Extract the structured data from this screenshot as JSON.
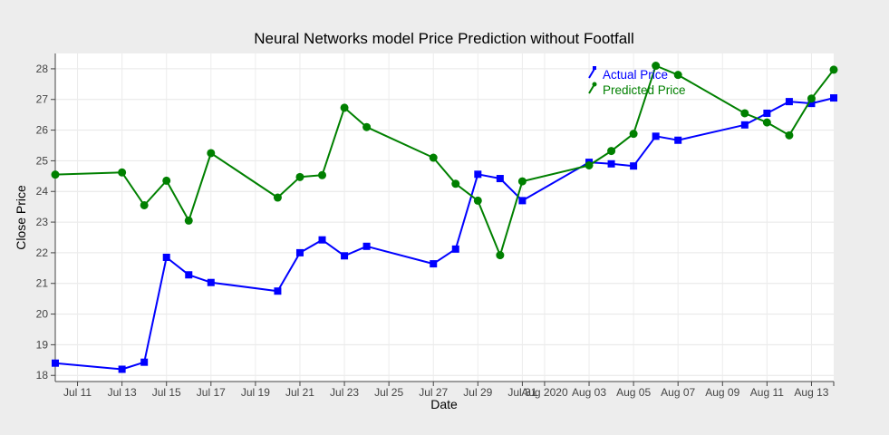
{
  "chart_data": {
    "type": "line",
    "title": "Neural Networks model Price Prediction without Footfall",
    "xlabel": "Date",
    "ylabel": "Close Price",
    "ylim": [
      17.8,
      28.5
    ],
    "xlim": [
      "2020-07-10",
      "2020-08-14"
    ],
    "grid": true,
    "legend_position": "top-right",
    "y_ticks": [
      18,
      19,
      20,
      21,
      22,
      23,
      24,
      25,
      26,
      27,
      28
    ],
    "x_ticks": [
      {
        "date": "2020-07-11",
        "label": "Jul 11"
      },
      {
        "date": "2020-07-13",
        "label": "Jul 13"
      },
      {
        "date": "2020-07-15",
        "label": "Jul 15"
      },
      {
        "date": "2020-07-17",
        "label": "Jul 17"
      },
      {
        "date": "2020-07-19",
        "label": "Jul 19"
      },
      {
        "date": "2020-07-21",
        "label": "Jul 21"
      },
      {
        "date": "2020-07-23",
        "label": "Jul 23"
      },
      {
        "date": "2020-07-25",
        "label": "Jul 25"
      },
      {
        "date": "2020-07-27",
        "label": "Jul 27"
      },
      {
        "date": "2020-07-29",
        "label": "Jul 29"
      },
      {
        "date": "2020-07-31",
        "label": "Jul 31"
      },
      {
        "date": "2020-08-01",
        "label": "Aug 2020"
      },
      {
        "date": "2020-08-03",
        "label": "Aug 03"
      },
      {
        "date": "2020-08-05",
        "label": "Aug 05"
      },
      {
        "date": "2020-08-07",
        "label": "Aug 07"
      },
      {
        "date": "2020-08-09",
        "label": "Aug 09"
      },
      {
        "date": "2020-08-11",
        "label": "Aug 11"
      },
      {
        "date": "2020-08-13",
        "label": "Aug 13"
      }
    ],
    "series": [
      {
        "name": "Actual Price",
        "color": "#0000ff",
        "marker": "square",
        "points": [
          {
            "x": "2020-07-10",
            "y": 18.4
          },
          {
            "x": "2020-07-13",
            "y": 18.2
          },
          {
            "x": "2020-07-14",
            "y": 18.43
          },
          {
            "x": "2020-07-15",
            "y": 21.85
          },
          {
            "x": "2020-07-16",
            "y": 21.28
          },
          {
            "x": "2020-07-17",
            "y": 21.03
          },
          {
            "x": "2020-07-20",
            "y": 20.75
          },
          {
            "x": "2020-07-21",
            "y": 22.0
          },
          {
            "x": "2020-07-22",
            "y": 22.42
          },
          {
            "x": "2020-07-23",
            "y": 21.9
          },
          {
            "x": "2020-07-24",
            "y": 22.21
          },
          {
            "x": "2020-07-27",
            "y": 21.64
          },
          {
            "x": "2020-07-28",
            "y": 22.12
          },
          {
            "x": "2020-07-29",
            "y": 24.56
          },
          {
            "x": "2020-07-30",
            "y": 24.42
          },
          {
            "x": "2020-07-31",
            "y": 23.7
          },
          {
            "x": "2020-08-03",
            "y": 24.95
          },
          {
            "x": "2020-08-04",
            "y": 24.9
          },
          {
            "x": "2020-08-05",
            "y": 24.83
          },
          {
            "x": "2020-08-06",
            "y": 25.8
          },
          {
            "x": "2020-08-07",
            "y": 25.67
          },
          {
            "x": "2020-08-10",
            "y": 26.17
          },
          {
            "x": "2020-08-11",
            "y": 26.55
          },
          {
            "x": "2020-08-12",
            "y": 26.93
          },
          {
            "x": "2020-08-13",
            "y": 26.87
          },
          {
            "x": "2020-08-14",
            "y": 27.05
          }
        ]
      },
      {
        "name": "Predicted Price",
        "color": "#008000",
        "marker": "circle",
        "points": [
          {
            "x": "2020-07-10",
            "y": 24.55
          },
          {
            "x": "2020-07-13",
            "y": 24.62
          },
          {
            "x": "2020-07-14",
            "y": 23.55
          },
          {
            "x": "2020-07-15",
            "y": 24.35
          },
          {
            "x": "2020-07-16",
            "y": 23.05
          },
          {
            "x": "2020-07-17",
            "y": 25.25
          },
          {
            "x": "2020-07-20",
            "y": 23.8
          },
          {
            "x": "2020-07-21",
            "y": 24.47
          },
          {
            "x": "2020-07-22",
            "y": 24.53
          },
          {
            "x": "2020-07-23",
            "y": 26.73
          },
          {
            "x": "2020-07-24",
            "y": 26.1
          },
          {
            "x": "2020-07-27",
            "y": 25.1
          },
          {
            "x": "2020-07-28",
            "y": 24.25
          },
          {
            "x": "2020-07-29",
            "y": 23.7
          },
          {
            "x": "2020-07-30",
            "y": 21.92
          },
          {
            "x": "2020-07-31",
            "y": 24.33
          },
          {
            "x": "2020-08-03",
            "y": 24.85
          },
          {
            "x": "2020-08-04",
            "y": 25.32
          },
          {
            "x": "2020-08-05",
            "y": 25.88
          },
          {
            "x": "2020-08-06",
            "y": 28.1
          },
          {
            "x": "2020-08-07",
            "y": 27.8
          },
          {
            "x": "2020-08-10",
            "y": 26.55
          },
          {
            "x": "2020-08-11",
            "y": 26.25
          },
          {
            "x": "2020-08-12",
            "y": 25.83
          },
          {
            "x": "2020-08-13",
            "y": 27.03
          },
          {
            "x": "2020-08-14",
            "y": 27.97
          }
        ]
      }
    ]
  }
}
